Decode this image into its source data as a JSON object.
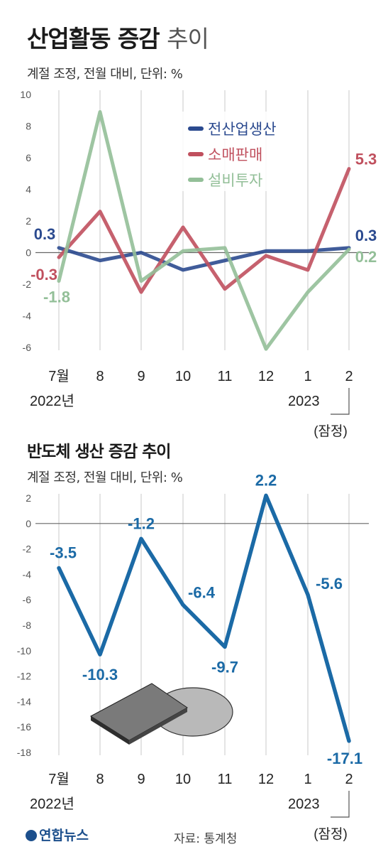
{
  "title": "산업활동 증감",
  "title_suffix": "추이",
  "logo_text": "연합뉴스",
  "source": "자료: 통계청",
  "chart_data": [
    {
      "type": "line",
      "subtitle": "계절 조정, 전월 대비, 단위: %",
      "categories": [
        "7월",
        "8",
        "9",
        "10",
        "11",
        "12",
        "1",
        "2"
      ],
      "year_labels": [
        "2022년",
        "2023"
      ],
      "provisional_label": "(잠정)",
      "ylim": [
        -6,
        10
      ],
      "yticks": [
        10,
        8,
        6,
        4,
        2,
        0,
        -2,
        -4,
        -6
      ],
      "grid": "vertical",
      "legend": "top-center",
      "series": [
        {
          "name": "전산업생산",
          "color": "#2b4a8f",
          "values": [
            0.3,
            -0.5,
            0.0,
            -1.1,
            -0.5,
            0.1,
            0.1,
            0.3
          ]
        },
        {
          "name": "소매판매",
          "color": "#c0505e",
          "values": [
            -0.3,
            2.6,
            -2.5,
            1.6,
            -2.3,
            -0.2,
            -1.1,
            5.3
          ]
        },
        {
          "name": "설비투자",
          "color": "#93bf98",
          "values": [
            -1.8,
            8.9,
            -1.8,
            0.1,
            0.3,
            -6.1,
            -2.5,
            0.2
          ]
        }
      ],
      "annotations": [
        {
          "text": "0.3",
          "series": 0,
          "index": 0
        },
        {
          "text": "-0.3",
          "series": 1,
          "index": 0
        },
        {
          "text": "-1.8",
          "series": 2,
          "index": 0
        },
        {
          "text": "5.3",
          "series": 1,
          "index": 7
        },
        {
          "text": "0.3",
          "series": 0,
          "index": 7
        },
        {
          "text": "0.2",
          "series": 2,
          "index": 7
        }
      ]
    },
    {
      "type": "line",
      "title": "반도체 생산 증감 추이",
      "subtitle": "계절 조정, 전월 대비, 단위: %",
      "categories": [
        "7월",
        "8",
        "9",
        "10",
        "11",
        "12",
        "1",
        "2"
      ],
      "year_labels": [
        "2022년",
        "2023"
      ],
      "provisional_label": "(잠정)",
      "ylim": [
        -18,
        2
      ],
      "yticks": [
        2,
        0,
        -2,
        -4,
        -6,
        -8,
        -10,
        -12,
        -14,
        -16,
        -18
      ],
      "grid": "vertical",
      "series": [
        {
          "color": "#1b6aa6",
          "values": [
            -3.5,
            -10.3,
            -1.2,
            -6.4,
            -9.7,
            2.2,
            -5.6,
            -17.1
          ]
        }
      ],
      "data_labels": [
        "-3.5",
        "-10.3",
        "-1.2",
        "-6.4",
        "-9.7",
        "2.2",
        "-5.6",
        "-17.1"
      ]
    }
  ]
}
